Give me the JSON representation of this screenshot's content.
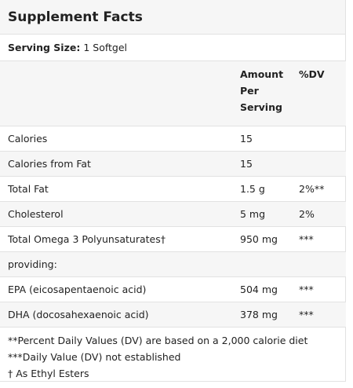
{
  "title": "Supplement Facts",
  "serving": {
    "label": "Serving Size:",
    "value": "1 Softgel"
  },
  "header": {
    "amount": "Amount Per Serving",
    "dv": "%DV"
  },
  "rows": [
    {
      "name": "Calories",
      "amount": "15",
      "dv": ""
    },
    {
      "name": "Calories from Fat",
      "amount": "15",
      "dv": ""
    },
    {
      "name": "Total Fat",
      "amount": "1.5 g",
      "dv": "2%**"
    },
    {
      "name": "Cholesterol",
      "amount": "5 mg",
      "dv": "2%"
    },
    {
      "name": "Total Omega 3 Polyunsaturates†",
      "amount": "950 mg",
      "dv": "***"
    },
    {
      "name": "providing:",
      "amount": "",
      "dv": ""
    },
    {
      "name": "EPA (eicosapentaenoic acid)",
      "amount": "504 mg",
      "dv": "***"
    },
    {
      "name": "DHA (docosahexaenoic acid)",
      "amount": "378 mg",
      "dv": "***"
    }
  ],
  "footnotes": [
    "**Percent Daily Values (DV) are based on a 2,000 calorie diet",
    "***Daily Value (DV) not established",
    "† As Ethyl Esters"
  ]
}
